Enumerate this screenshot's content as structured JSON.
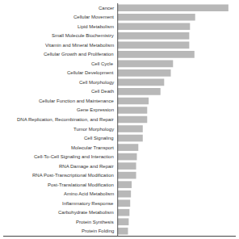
{
  "chart_data": {
    "type": "bar",
    "orientation": "horizontal",
    "categories": [
      "Cancer",
      "Cellular Movement",
      "Lipid Metabolism",
      "Small Molecule Biochemistry",
      "Vitamin and Mineral Metabolism",
      "Cellular Growth and Proliferation",
      "Cell Cycle",
      "Cellular Development",
      "Cell Morphology",
      "Cell Death",
      "Cellular Function and Maintenance",
      "Gene Expression",
      "DNA Replication, Recombination, and Repair",
      "Tumor Morphology",
      "Cell Signaling",
      "Molecular Transport",
      "Cell-To-Cell Signaling and Interaction",
      "RNA Damage and Repair",
      "RNA Post-Transcriptional Modification",
      "Post-Translational Modification",
      "Amino Acid Metabolism",
      "Inflammatory Response",
      "Carbohydrate Metabolism",
      "Protein Synthesis",
      "Protein Folding"
    ],
    "values": [
      150,
      105,
      98,
      97,
      97,
      104,
      75,
      72,
      63,
      58,
      42,
      40,
      40,
      34,
      34,
      28,
      26,
      25,
      25,
      19,
      18,
      17,
      16,
      15,
      14
    ],
    "color": "#b8b8b8",
    "xlim": [
      -155,
      160
    ],
    "grid": false,
    "tick_labels": false
  }
}
